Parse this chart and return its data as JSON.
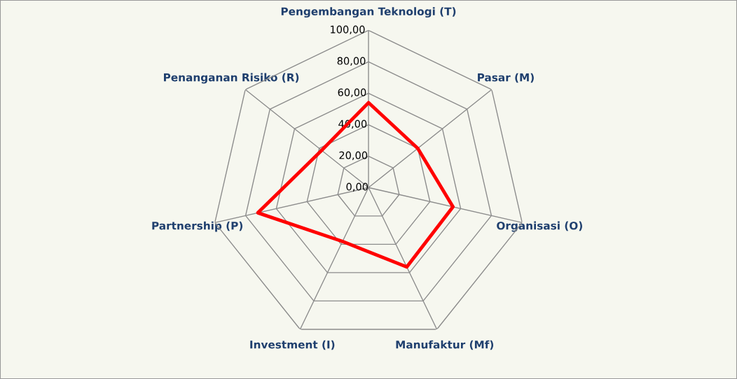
{
  "chart_data": {
    "type": "radar",
    "categories": [
      "Pengembangan Teknologi (T)",
      "Pasar (M)",
      "Organisasi (O)",
      "Manufaktur (Mf)",
      "Investment (I)",
      "Partnership (P)",
      "Penanganan Risiko (R)"
    ],
    "series": [
      {
        "color": "#ff0000",
        "values": [
          54,
          40,
          55,
          56,
          38,
          72,
          38
        ]
      }
    ],
    "ylim": [
      0,
      100
    ],
    "yticks": [
      {
        "value": 0,
        "label": "0,00"
      },
      {
        "value": 20,
        "label": "20,00"
      },
      {
        "value": 40,
        "label": "40,00"
      },
      {
        "value": 60,
        "label": "60,00"
      },
      {
        "value": 80,
        "label": "80,00"
      },
      {
        "value": 100,
        "label": "100,00"
      }
    ],
    "grid": true,
    "marker": "none",
    "line_style": "solid"
  }
}
